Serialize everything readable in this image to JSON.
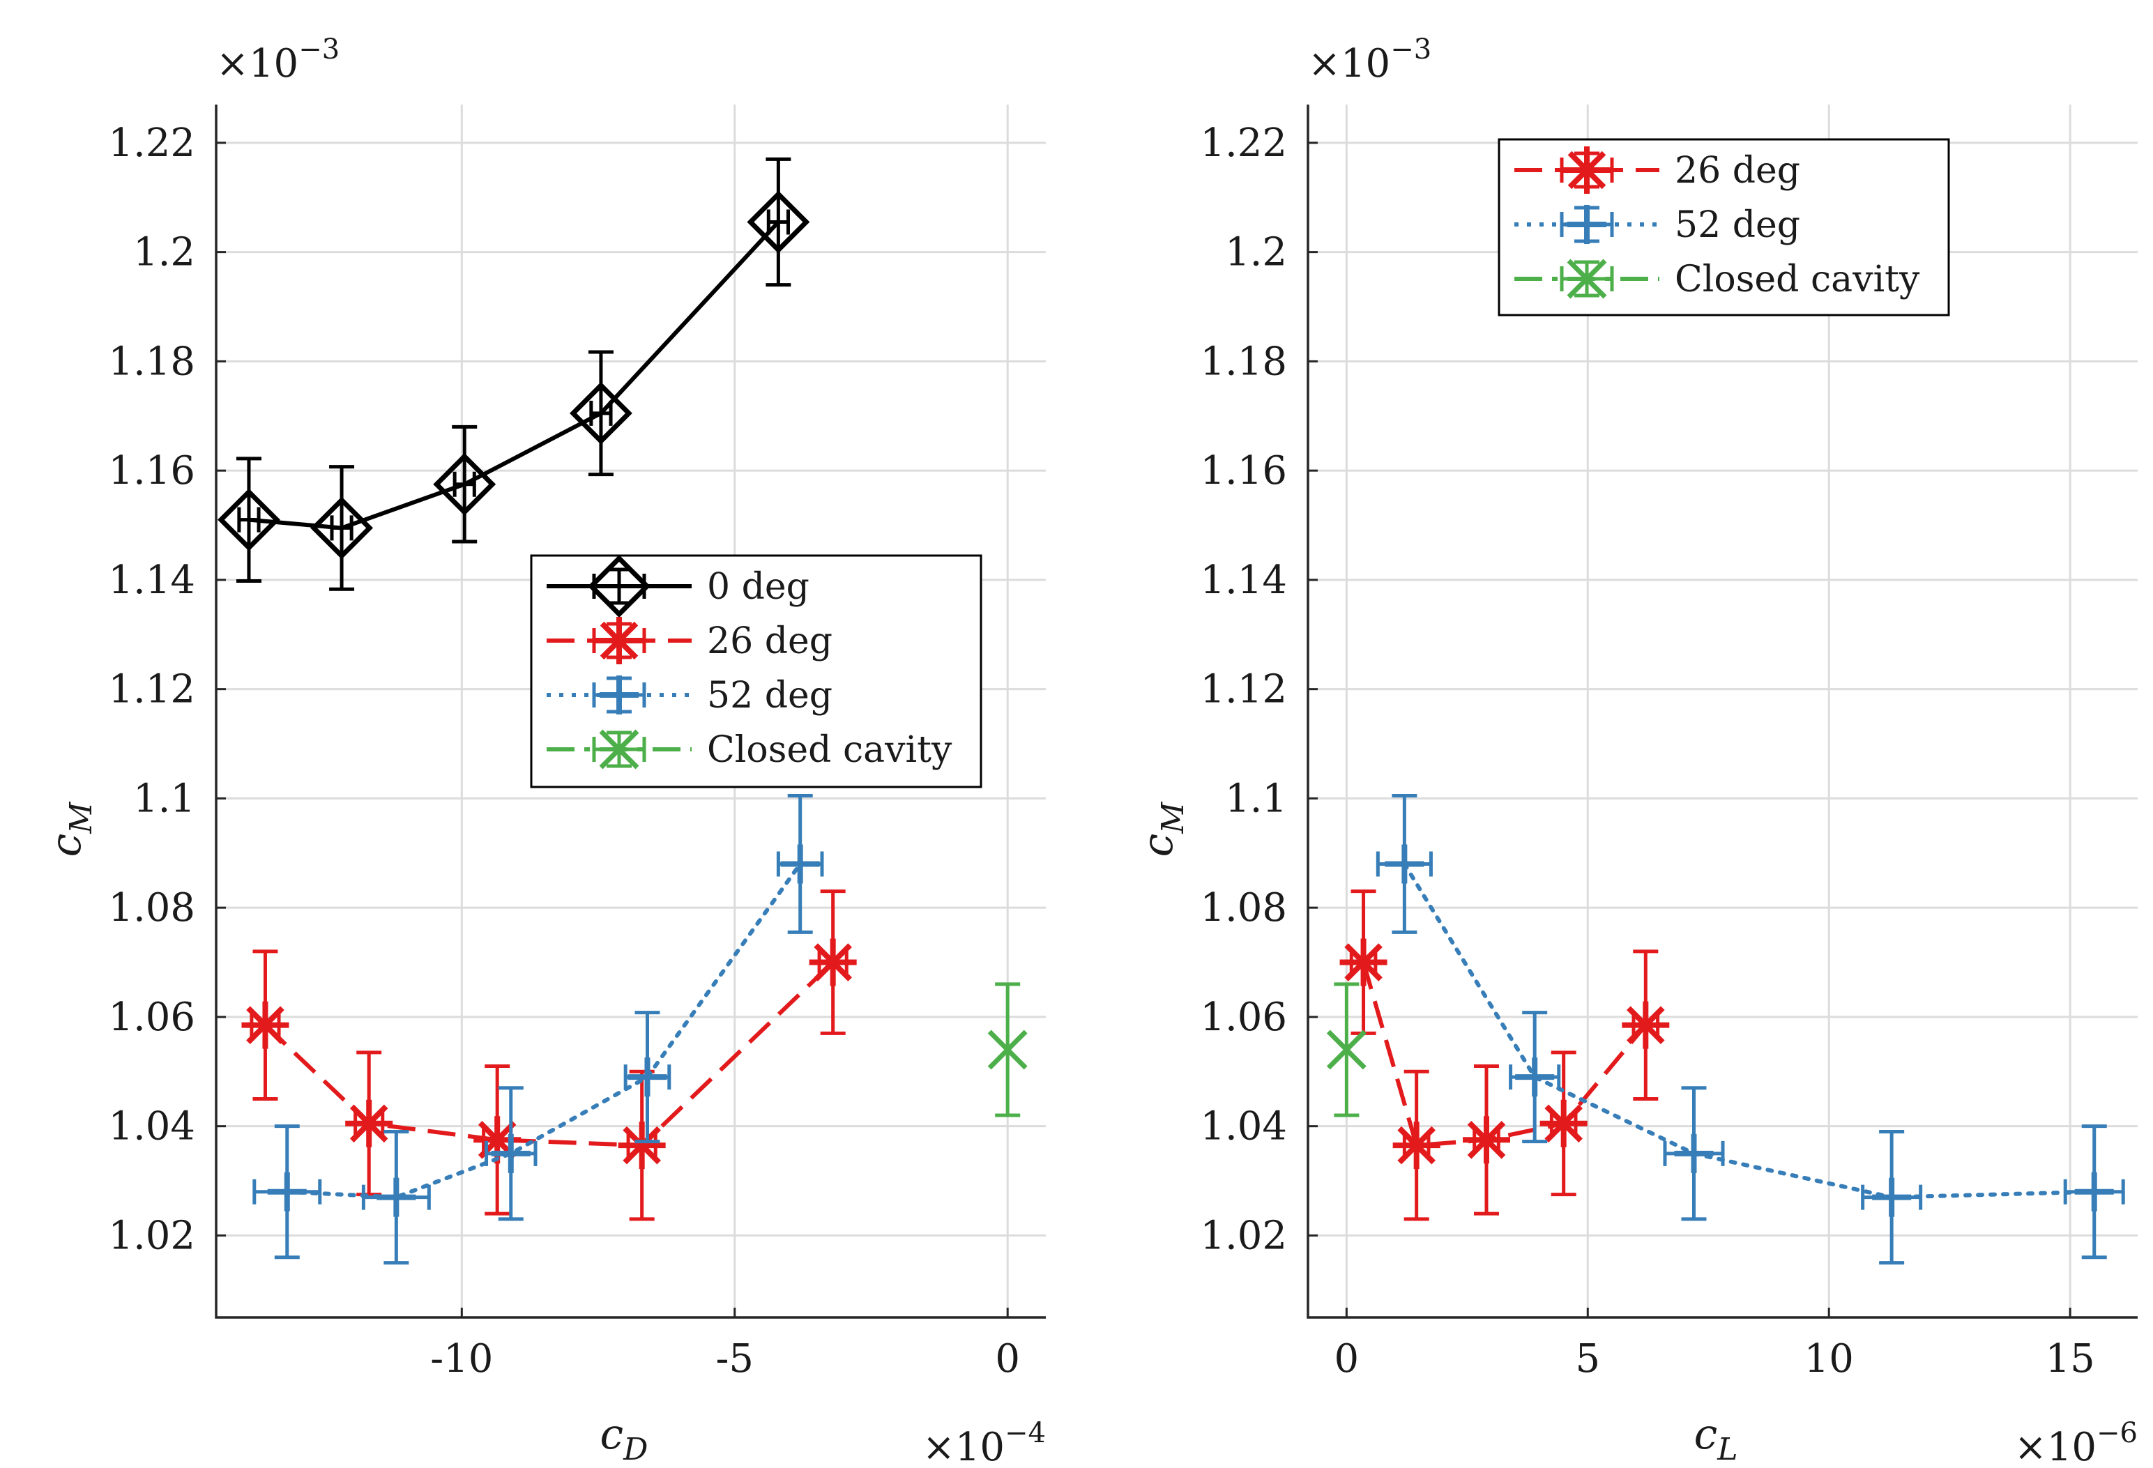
{
  "colors": {
    "black": "#000000",
    "red": "#e31a1c",
    "blue": "#377eb8",
    "green": "#4daf4a"
  },
  "chart_data": [
    {
      "type": "scatter",
      "xlabel_base": "c",
      "xlabel_sub": "D",
      "ylabel_base": "c",
      "ylabel_sub": "M",
      "x_multiplier": "×10",
      "x_multiplier_exp": "−4",
      "y_multiplier": "×10",
      "y_multiplier_exp": "−3",
      "xlim": [
        -14.5,
        0.7
      ],
      "ylim": [
        1.005,
        1.227
      ],
      "xticks": [
        -10,
        -5,
        0
      ],
      "xtick_labels": [
        "-10",
        "-5",
        "0"
      ],
      "yticks": [
        1.02,
        1.04,
        1.06,
        1.08,
        1.1,
        1.12,
        1.14,
        1.16,
        1.18,
        1.2,
        1.22
      ],
      "ytick_labels": [
        "1.02",
        "1.04",
        "1.06",
        "1.08",
        "1.1",
        "1.12",
        "1.14",
        "1.16",
        "1.18",
        "1.2",
        "1.22"
      ],
      "grid": true,
      "legend_position": "center-right",
      "series": [
        {
          "name": "0 deg",
          "color": "#000000",
          "line": "solid",
          "marker": "diamond",
          "x": [
            -13.9,
            -12.2,
            -9.95,
            -7.45,
            -4.2
          ],
          "y": [
            1.151,
            1.1495,
            1.1575,
            1.1705,
            1.2055
          ],
          "xerr": [
            0.18,
            0.18,
            0.18,
            0.18,
            0.18
          ],
          "yerr": [
            0.0112,
            0.0112,
            0.0105,
            0.0112,
            0.0115
          ]
        },
        {
          "name": "26 deg",
          "color": "#e31a1c",
          "line": "dashed",
          "marker": "asterisk",
          "x": [
            -13.6,
            -11.7,
            -9.35,
            -6.7,
            -3.2
          ],
          "y": [
            1.0585,
            1.0405,
            1.0375,
            1.0365,
            1.07
          ],
          "xerr": [
            0.25,
            0.25,
            0.25,
            0.25,
            0.25
          ],
          "yerr": [
            0.0135,
            0.013,
            0.0135,
            0.0135,
            0.013
          ]
        },
        {
          "name": "52 deg",
          "color": "#377eb8",
          "line": "dotted",
          "marker": "plus",
          "x": [
            -13.2,
            -11.2,
            -9.1,
            -6.6,
            -3.8
          ],
          "y": [
            1.028,
            1.027,
            1.035,
            1.049,
            1.088
          ],
          "xerr": [
            0.6,
            0.6,
            0.45,
            0.4,
            0.4
          ],
          "yerr": [
            0.012,
            0.012,
            0.012,
            0.0118,
            0.0125
          ]
        },
        {
          "name": "Closed cavity",
          "color": "#4daf4a",
          "line": "dashdot",
          "marker": "x",
          "x": [
            0.0
          ],
          "y": [
            1.054
          ],
          "xerr": [
            0.0
          ],
          "yerr": [
            0.012
          ]
        }
      ],
      "legend": [
        "0 deg",
        "26 deg",
        "52 deg",
        "Closed cavity"
      ]
    },
    {
      "type": "scatter",
      "xlabel_base": "c",
      "xlabel_sub": "L",
      "ylabel_base": "c",
      "ylabel_sub": "M",
      "x_multiplier": "×10",
      "x_multiplier_exp": "−6",
      "y_multiplier": "×10",
      "y_multiplier_exp": "−3",
      "xlim": [
        -0.8,
        16.4
      ],
      "ylim": [
        1.005,
        1.227
      ],
      "xticks": [
        0,
        5,
        10,
        15
      ],
      "xtick_labels": [
        "0",
        "5",
        "10",
        "15"
      ],
      "yticks": [
        1.02,
        1.04,
        1.06,
        1.08,
        1.1,
        1.12,
        1.14,
        1.16,
        1.18,
        1.2,
        1.22
      ],
      "ytick_labels": [
        "1.02",
        "1.04",
        "1.06",
        "1.08",
        "1.1",
        "1.12",
        "1.14",
        "1.16",
        "1.18",
        "1.2",
        "1.22"
      ],
      "grid": true,
      "legend_position": "top-center",
      "series": [
        {
          "name": "26 deg",
          "color": "#e31a1c",
          "line": "dashed",
          "marker": "asterisk",
          "x": [
            0.35,
            1.45,
            2.9,
            4.5,
            6.2
          ],
          "y": [
            1.07,
            1.0365,
            1.0375,
            1.0405,
            1.0585
          ],
          "xerr": [
            0.25,
            0.25,
            0.25,
            0.25,
            0.25
          ],
          "yerr": [
            0.013,
            0.0135,
            0.0135,
            0.013,
            0.0135
          ]
        },
        {
          "name": "52 deg",
          "color": "#377eb8",
          "line": "dotted",
          "marker": "plus",
          "x": [
            1.2,
            3.9,
            7.2,
            11.3,
            15.5
          ],
          "y": [
            1.088,
            1.049,
            1.035,
            1.027,
            1.028
          ],
          "xerr": [
            0.55,
            0.5,
            0.6,
            0.6,
            0.6
          ],
          "yerr": [
            0.0125,
            0.0118,
            0.012,
            0.012,
            0.012
          ]
        },
        {
          "name": "Closed cavity",
          "color": "#4daf4a",
          "line": "dashdot",
          "marker": "x",
          "x": [
            0.0
          ],
          "y": [
            1.054
          ],
          "xerr": [
            0.0
          ],
          "yerr": [
            0.012
          ]
        }
      ],
      "legend": [
        "26 deg",
        "52 deg",
        "Closed cavity"
      ]
    }
  ]
}
